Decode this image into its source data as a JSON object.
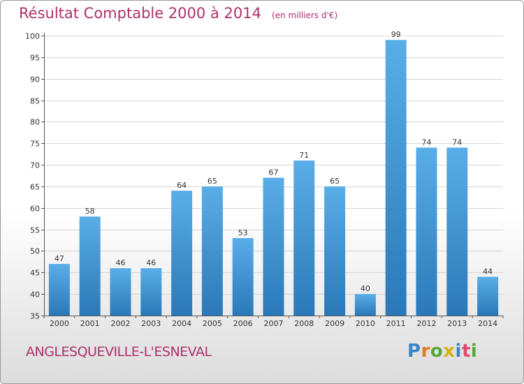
{
  "header": {
    "title": "Résultat Comptable 2000 à 2014",
    "subtitle": "(en milliers d'€)"
  },
  "footer": {
    "commune": "ANGLESQUEVILLE-L'ESNEVAL",
    "brand": "Proxiti"
  },
  "colors": {
    "bar_light": "#5aaee8",
    "bar_dark": "#2a78b8",
    "title": "#b0306a"
  },
  "chart_data": {
    "type": "bar",
    "title": "Résultat Comptable 2000 à 2014",
    "subtitle": "(en milliers d'€)",
    "xlabel": "",
    "ylabel": "",
    "categories": [
      "2000",
      "2001",
      "2002",
      "2003",
      "2004",
      "2005",
      "2006",
      "2007",
      "2008",
      "2009",
      "2010",
      "2011",
      "2012",
      "2013",
      "2014"
    ],
    "values": [
      47,
      58,
      46,
      46,
      64,
      65,
      53,
      67,
      71,
      65,
      40,
      99,
      74,
      74,
      44
    ],
    "ylim": [
      35,
      100
    ],
    "yticks": [
      35,
      40,
      45,
      50,
      55,
      60,
      65,
      70,
      75,
      80,
      85,
      90,
      95,
      100
    ],
    "grid": true,
    "legend": "none"
  }
}
